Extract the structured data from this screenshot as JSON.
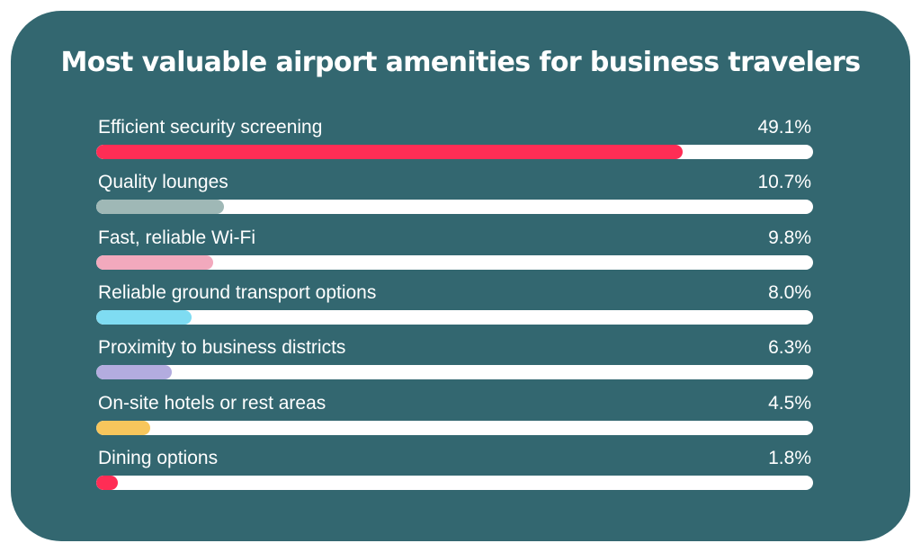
{
  "chart_data": {
    "type": "bar",
    "orientation": "horizontal",
    "title": "Most valuable airport amenities for business travelers",
    "categories": [
      "Efficient security screening",
      "Quality lounges",
      "Fast, reliable Wi-Fi",
      "Reliable ground transport options",
      "Proximity to business districts",
      "On-site hotels or rest areas",
      "Dining options"
    ],
    "values": [
      49.1,
      10.7,
      9.8,
      8.0,
      6.3,
      4.5,
      1.8
    ],
    "value_labels": [
      "49.1%",
      "10.7%",
      "9.8%",
      "8.0%",
      "6.3%",
      "4.5%",
      "1.8%"
    ],
    "colors": [
      "#ff2d55",
      "#9fb8b6",
      "#f2a9bd",
      "#7fdcf2",
      "#b3acdf",
      "#f7c65c",
      "#ff2d55"
    ],
    "track_color": "#ffffff",
    "background_color": "#336770",
    "unit": "%"
  }
}
